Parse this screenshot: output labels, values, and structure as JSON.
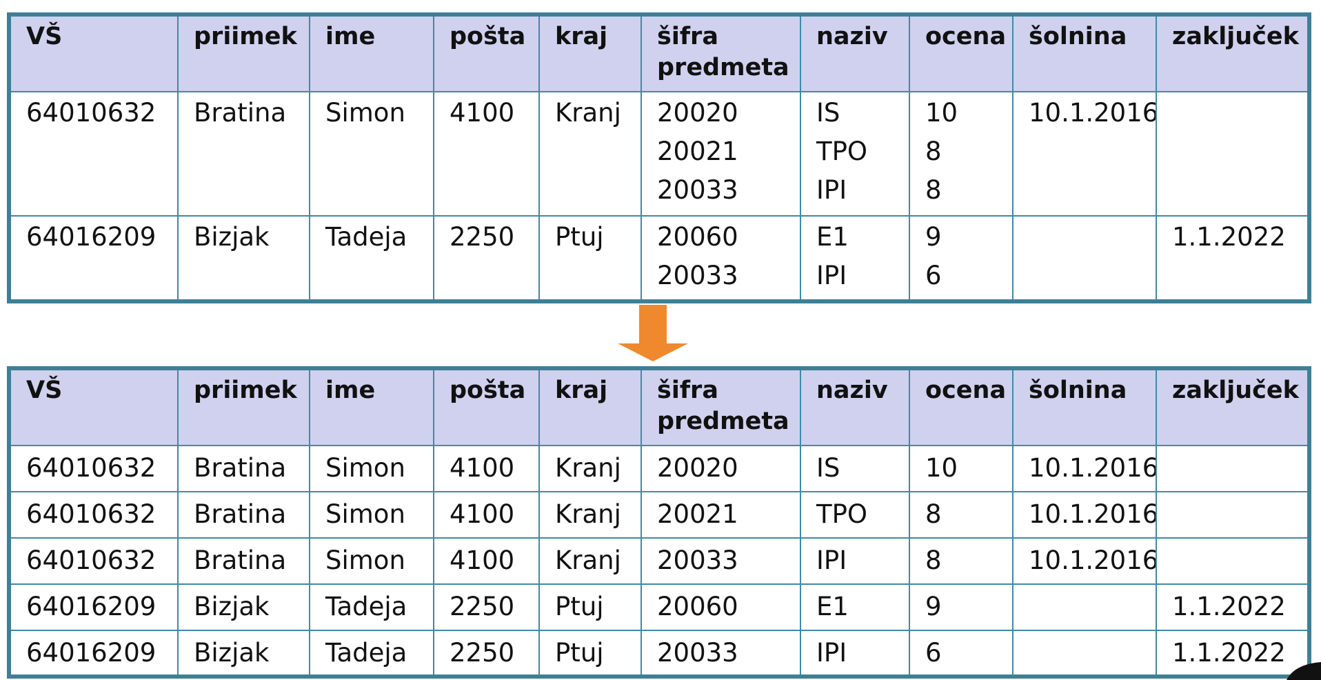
{
  "headers": [
    "VŠ",
    "priimek",
    "ime",
    "pošta",
    "kraj",
    "šifra predmeta",
    "naziv",
    "ocena",
    "šolnina",
    "zaključek"
  ],
  "original": [
    {
      "vs": "64010632",
      "priimek": "Bratina",
      "ime": "Simon",
      "posta": "4100",
      "kraj": "Kranj",
      "sifra": [
        "20020",
        "20021",
        "20033"
      ],
      "naziv": [
        "IS",
        "TPO",
        "IPI"
      ],
      "ocena": [
        "10",
        "8",
        "8"
      ],
      "solnina": "10.1.2016",
      "zakljucek": ""
    },
    {
      "vs": "64016209",
      "priimek": "Bizjak",
      "ime": "Tadeja",
      "posta": "2250",
      "kraj": "Ptuj",
      "sifra": [
        "20060",
        "20033"
      ],
      "naziv": [
        "E1",
        "IPI"
      ],
      "ocena": [
        "9",
        "6"
      ],
      "solnina": "",
      "zakljucek": "1.1.2022"
    }
  ],
  "normalized": [
    [
      "64010632",
      "Bratina",
      "Simon",
      "4100",
      "Kranj",
      "20020",
      "IS",
      "10",
      "10.1.2016",
      ""
    ],
    [
      "64010632",
      "Bratina",
      "Simon",
      "4100",
      "Kranj",
      "20021",
      "TPO",
      "8",
      "10.1.2016",
      ""
    ],
    [
      "64010632",
      "Bratina",
      "Simon",
      "4100",
      "Kranj",
      "20033",
      "IPI",
      "8",
      "10.1.2016",
      ""
    ],
    [
      "64016209",
      "Bizjak",
      "Tadeja",
      "2250",
      "Ptuj",
      "20060",
      "E1",
      "9",
      "",
      "1.1.2022"
    ],
    [
      "64016209",
      "Bizjak",
      "Tadeja",
      "2250",
      "Ptuj",
      "20033",
      "IPI",
      "6",
      "",
      "1.1.2022"
    ]
  ],
  "colors": {
    "header_bg": "#cfd1ee",
    "border": "#3f7f96",
    "arrow": "#f0882e"
  },
  "icons": {
    "arrow": "down-arrow-icon"
  }
}
